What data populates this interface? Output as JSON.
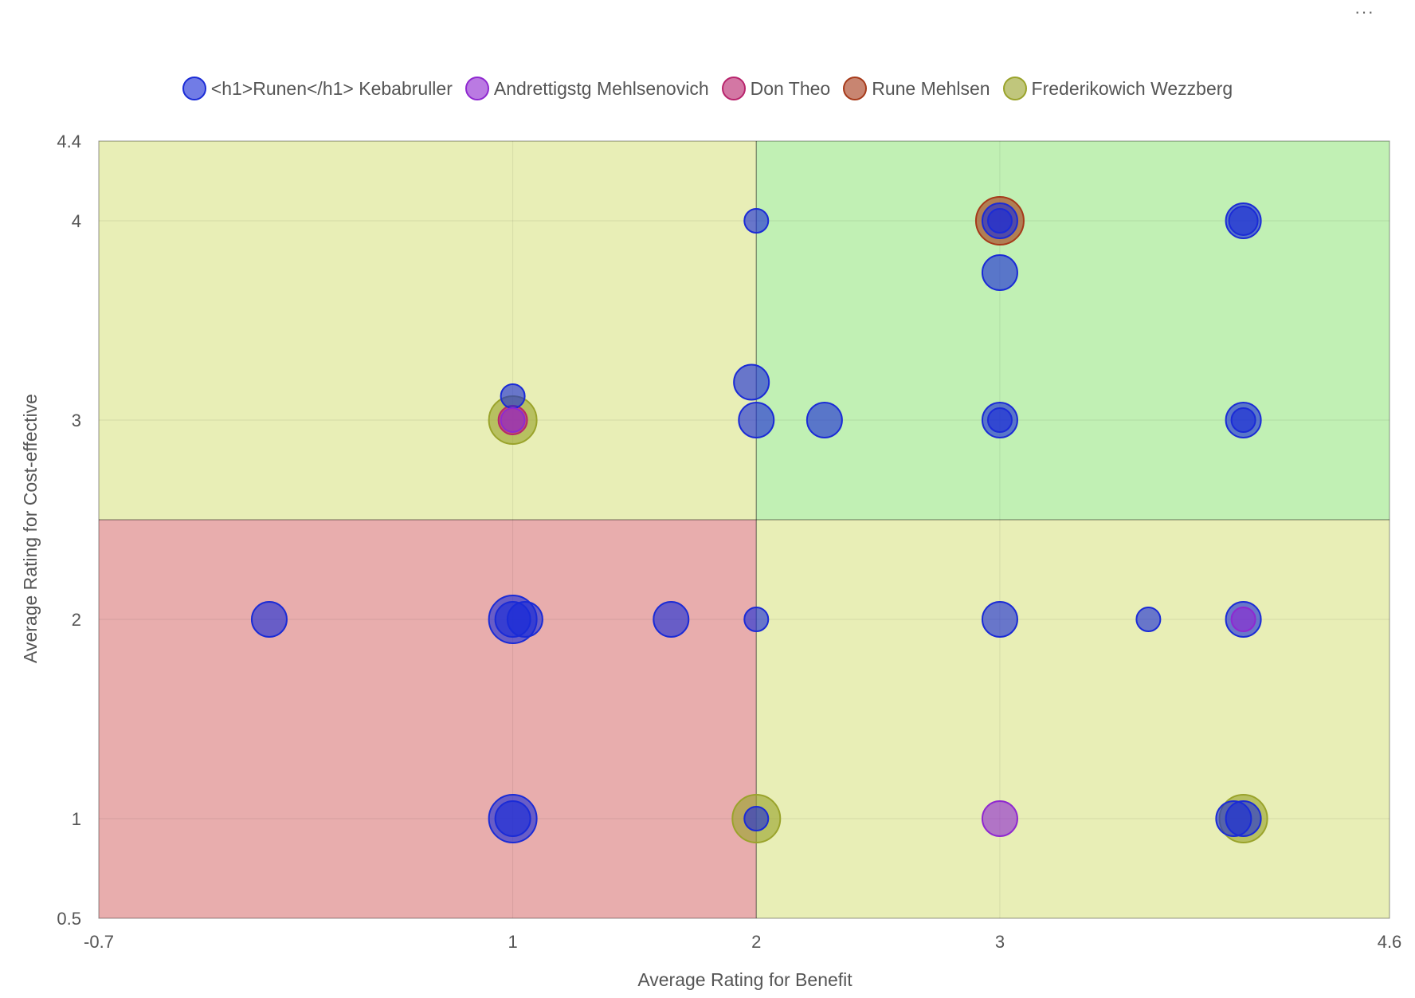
{
  "menu_label": "···",
  "colors": {
    "quadrant_green": "#c1f0b4",
    "quadrant_yellow": "#e8eeb6",
    "quadrant_red": "#e8adad"
  },
  "chart_data": {
    "type": "scatter",
    "subtype": "bubble",
    "xlabel": "Average Rating for Benefit",
    "ylabel": "Average Rating for Cost-effective",
    "xlim": [
      -0.7,
      4.6
    ],
    "ylim": [
      0.5,
      4.4
    ],
    "x_ticks": [
      "-0.7",
      "1",
      "2",
      "3",
      "4.6"
    ],
    "x_tick_values": [
      -0.7,
      1,
      2,
      3,
      4.6
    ],
    "y_ticks": [
      "0.5",
      "1",
      "2",
      "3",
      "4",
      "4.4"
    ],
    "y_tick_values": [
      0.5,
      1,
      2,
      3,
      4,
      4.4
    ],
    "quadrant_split": {
      "x": 2,
      "y": 2.5
    },
    "legend_position": "top-center",
    "series": [
      {
        "name": "<h1>Runen</h1> Kebabruller",
        "color": "#1a2bd6",
        "points": [
          {
            "x": 2,
            "y": 4,
            "r": 15
          },
          {
            "x": 3,
            "y": 4,
            "r": 22
          },
          {
            "x": 3,
            "y": 4,
            "r": 15
          },
          {
            "x": 4,
            "y": 4,
            "r": 22
          },
          {
            "x": 4,
            "y": 4,
            "r": 18
          },
          {
            "x": 3,
            "y": 3.74,
            "r": 22
          },
          {
            "x": 1,
            "y": 3.12,
            "r": 15
          },
          {
            "x": 1.98,
            "y": 3.19,
            "r": 22
          },
          {
            "x": 2,
            "y": 3,
            "r": 22
          },
          {
            "x": 2.28,
            "y": 3,
            "r": 22
          },
          {
            "x": 3,
            "y": 3,
            "r": 22
          },
          {
            "x": 3,
            "y": 3,
            "r": 15
          },
          {
            "x": 4,
            "y": 3,
            "r": 22
          },
          {
            "x": 4,
            "y": 3,
            "r": 15
          },
          {
            "x": 0,
            "y": 2,
            "r": 22
          },
          {
            "x": 1,
            "y": 2,
            "r": 30
          },
          {
            "x": 1,
            "y": 2,
            "r": 22
          },
          {
            "x": 1.05,
            "y": 2,
            "r": 22
          },
          {
            "x": 1.65,
            "y": 2,
            "r": 22
          },
          {
            "x": 2,
            "y": 2,
            "r": 15
          },
          {
            "x": 3,
            "y": 2,
            "r": 22
          },
          {
            "x": 3.61,
            "y": 2,
            "r": 15
          },
          {
            "x": 4,
            "y": 2,
            "r": 22
          },
          {
            "x": 1,
            "y": 1,
            "r": 30
          },
          {
            "x": 1,
            "y": 1,
            "r": 22
          },
          {
            "x": 2,
            "y": 1,
            "r": 15
          },
          {
            "x": 3.96,
            "y": 1,
            "r": 22
          },
          {
            "x": 4,
            "y": 1,
            "r": 22
          }
        ]
      },
      {
        "name": "Andrettigstg Mehlsenovich",
        "color": "#8f28d0",
        "points": [
          {
            "x": 1,
            "y": 3,
            "r": 15
          },
          {
            "x": 3,
            "y": 1,
            "r": 22
          },
          {
            "x": 4,
            "y": 2,
            "r": 15
          }
        ]
      },
      {
        "name": "Don Theo",
        "color": "#b8246c",
        "points": [
          {
            "x": 1,
            "y": 3,
            "r": 18
          }
        ]
      },
      {
        "name": "Rune Mehlsen",
        "color": "#a63a1a",
        "points": [
          {
            "x": 3,
            "y": 4,
            "r": 30
          }
        ]
      },
      {
        "name": "Frederikowich Wezzberg",
        "color": "#9aa32b",
        "points": [
          {
            "x": 1,
            "y": 3,
            "r": 30
          },
          {
            "x": 2,
            "y": 1,
            "r": 30
          },
          {
            "x": 4,
            "y": 1,
            "r": 30
          }
        ]
      }
    ]
  }
}
